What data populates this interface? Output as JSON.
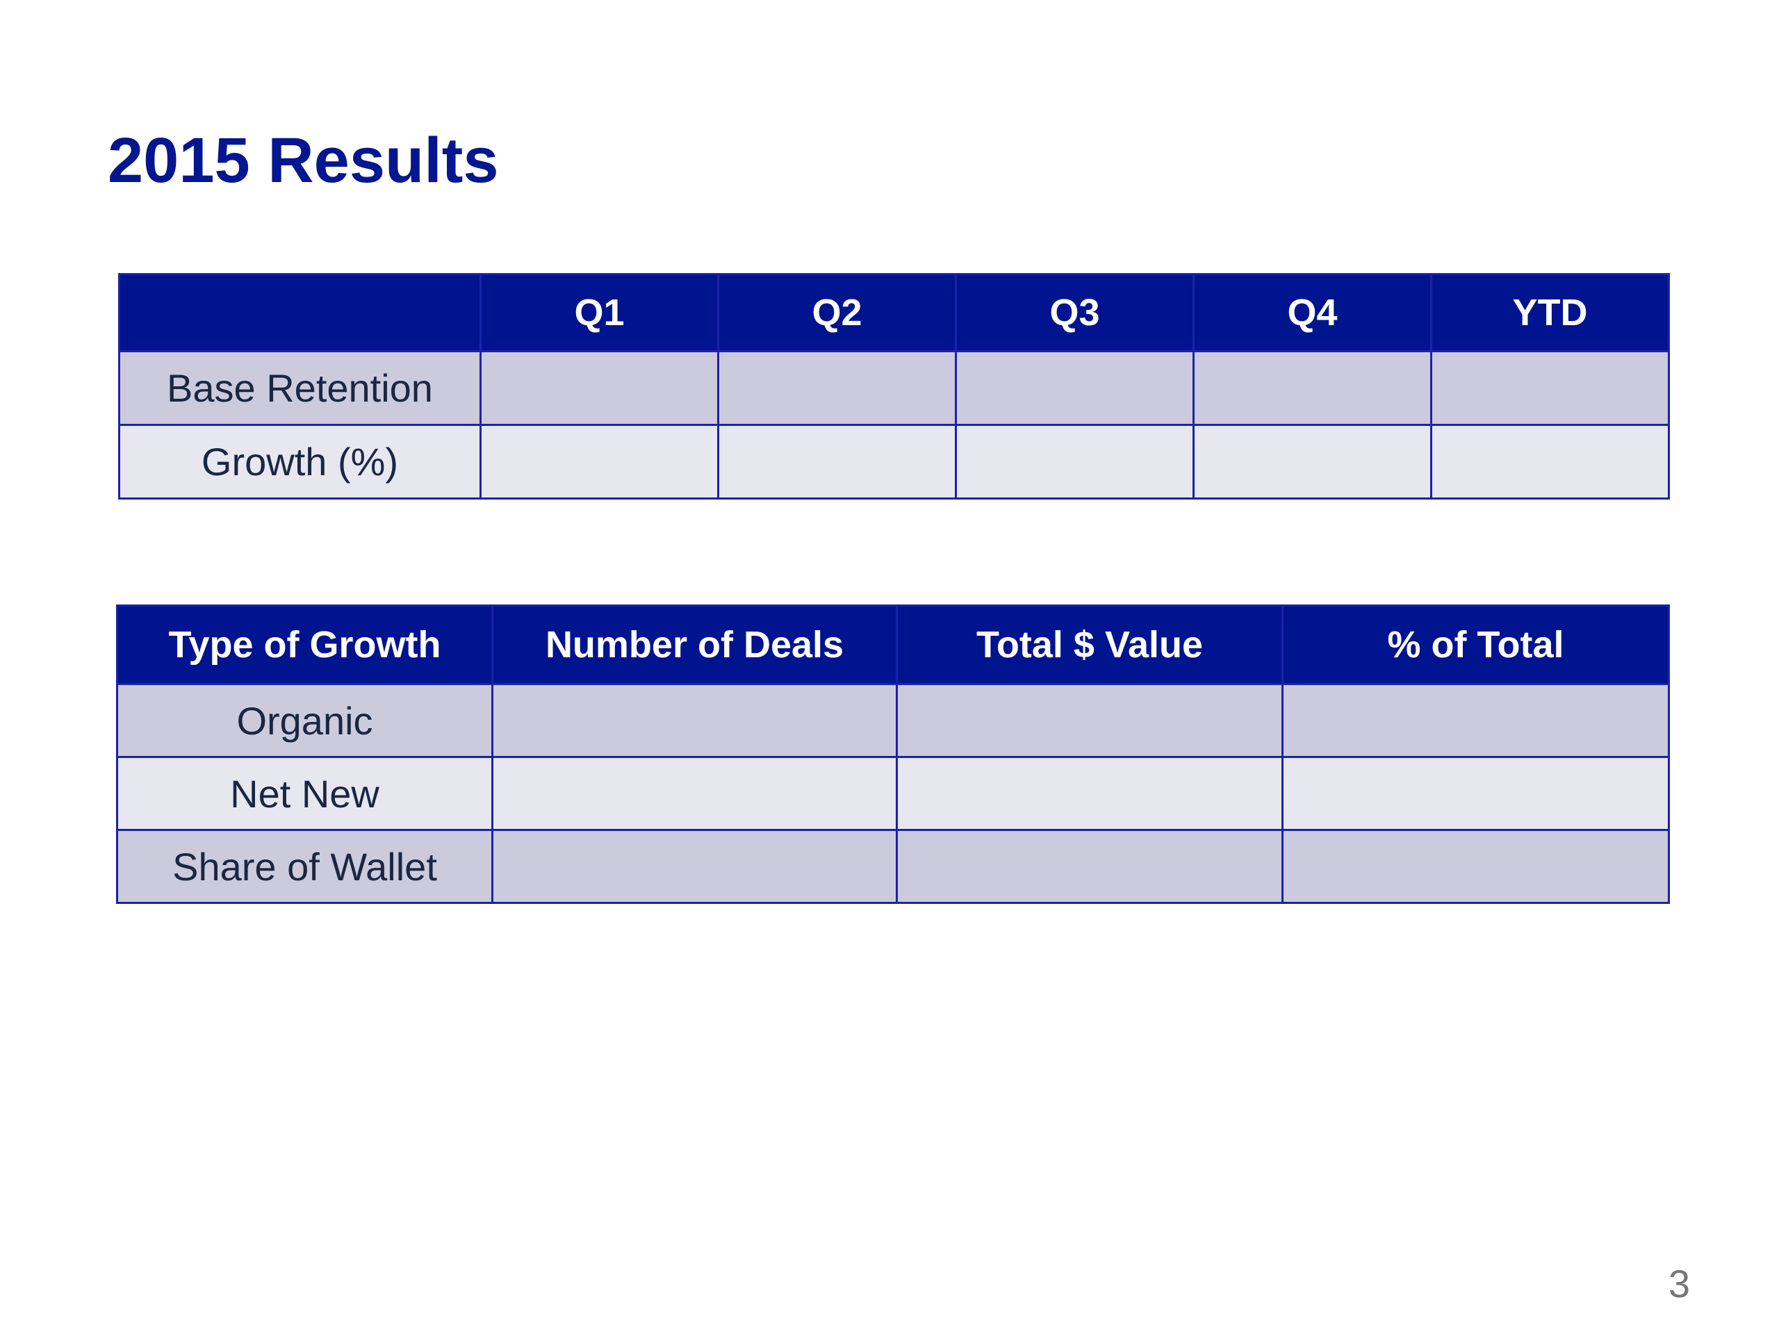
{
  "slide": {
    "title": "2015 Results",
    "page_number": "3"
  },
  "quarterly_table": {
    "header_corner": "",
    "columns": [
      "Q1",
      "Q2",
      "Q3",
      "Q4",
      "YTD"
    ],
    "rows": [
      {
        "label": "Base Retention",
        "values": [
          "",
          "",
          "",
          "",
          ""
        ]
      },
      {
        "label": "Growth (%)",
        "values": [
          "",
          "",
          "",
          "",
          ""
        ]
      }
    ]
  },
  "growth_table": {
    "columns": [
      "Type of Growth",
      "Number of Deals",
      "Total $ Value",
      "% of Total"
    ],
    "rows": [
      {
        "label": "Organic",
        "values": [
          "",
          "",
          ""
        ]
      },
      {
        "label": "Net New",
        "values": [
          "",
          "",
          ""
        ]
      },
      {
        "label": "Share of Wallet",
        "values": [
          "",
          "",
          ""
        ]
      }
    ]
  },
  "colors": {
    "title": "#041690",
    "header_fill": "#01148f",
    "row_dark": "#cbcbdd",
    "row_light": "#e7e7f0",
    "border": "#1a23a8"
  }
}
